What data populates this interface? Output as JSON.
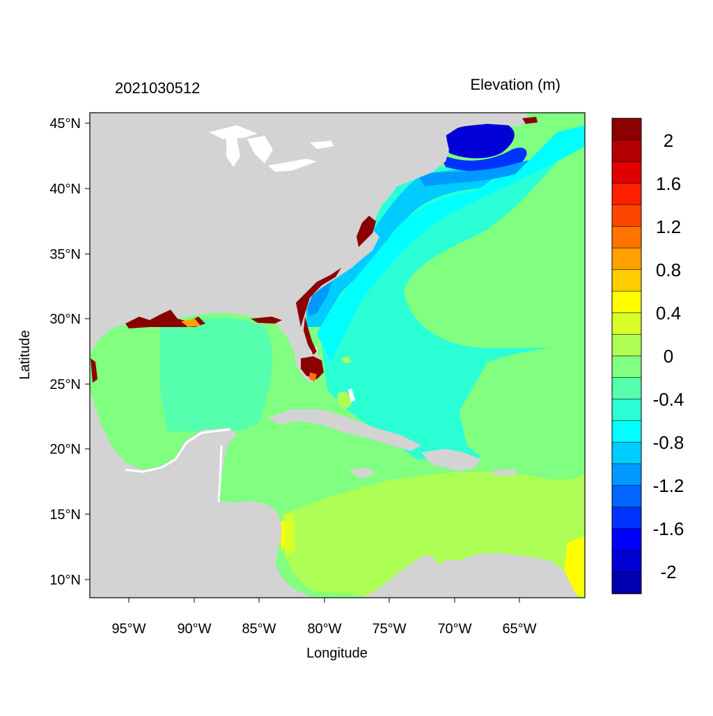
{
  "header": {
    "timestamp": "2021030512",
    "variable_title": "Elevation (m)"
  },
  "axes": {
    "xlabel": "Longitude",
    "ylabel": "Latitude",
    "x_ticks": [
      "95°W",
      "90°W",
      "85°W",
      "80°W",
      "75°W",
      "70°W",
      "65°W"
    ],
    "y_ticks": [
      "45°N",
      "40°N",
      "35°N",
      "30°N",
      "25°N",
      "20°N",
      "15°N",
      "10°N"
    ],
    "lon_range": [
      -98,
      -60
    ],
    "lat_range": [
      8.5,
      46
    ]
  },
  "colorbar": {
    "labels": [
      "2",
      "1.6",
      "1.2",
      "0.8",
      "0.4",
      "0",
      "-0.4",
      "-0.8",
      "-1.2",
      "-1.6",
      "-2"
    ],
    "colors": [
      "#8b0000",
      "#b40000",
      "#e10000",
      "#ff1e00",
      "#ff4600",
      "#ff7300",
      "#ffa000",
      "#ffcd00",
      "#ffff00",
      "#d9ff2a",
      "#adff55",
      "#80ff80",
      "#55ffad",
      "#2affd6",
      "#00ffff",
      "#00ccff",
      "#0099ff",
      "#0066ff",
      "#0033ff",
      "#0000ff",
      "#0000d6",
      "#0000b0"
    ]
  },
  "map_colors": {
    "land": "#d3d3d3",
    "ocean": "#80ff80",
    "lake": "#ffffff"
  }
}
